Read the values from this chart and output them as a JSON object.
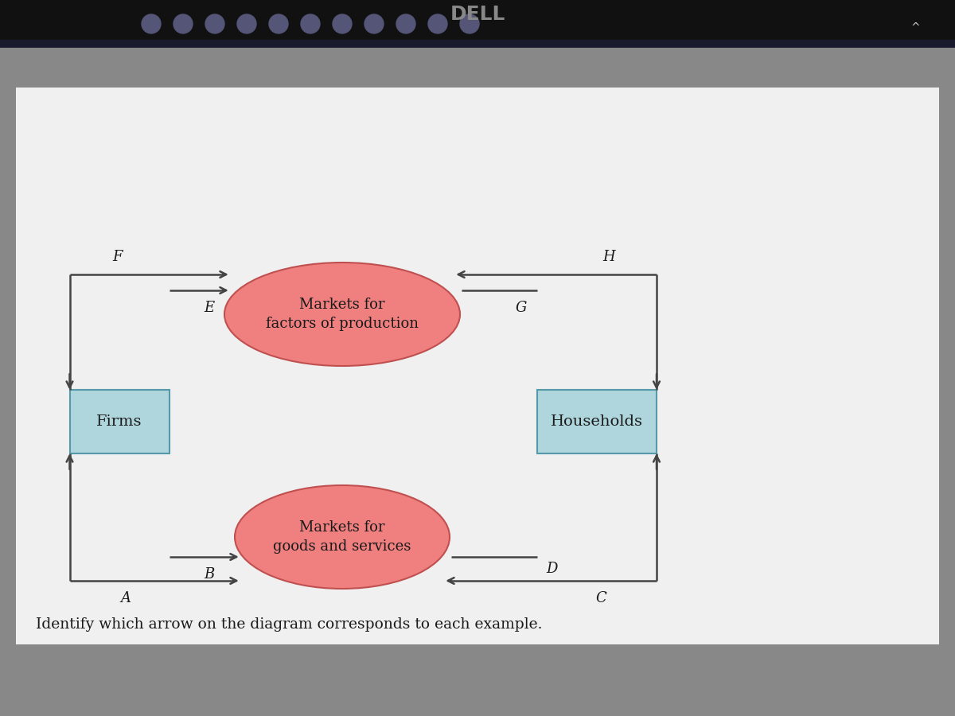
{
  "title": "Identify which arrow on the diagram corresponds to each example.",
  "title_fontsize": 13.5,
  "page_bg": "#e8e8e8",
  "screen_bg": "#b0b0b0",
  "taskbar_color": "#1a1a2e",
  "text_color": "#1a1a1a",
  "line_color": "#444444",
  "firms_color": "#aed6dc",
  "households_color": "#aed6dc",
  "goods_color": "#f08080",
  "factors_color": "#f08080",
  "firms_label": "Firms",
  "households_label": "Households",
  "goods_label": "Markets for\ngoods and services",
  "factors_label": "Markets for\nfactors of production",
  "arrow_labels": [
    "A",
    "B",
    "C",
    "D",
    "E",
    "F",
    "G",
    "H"
  ]
}
